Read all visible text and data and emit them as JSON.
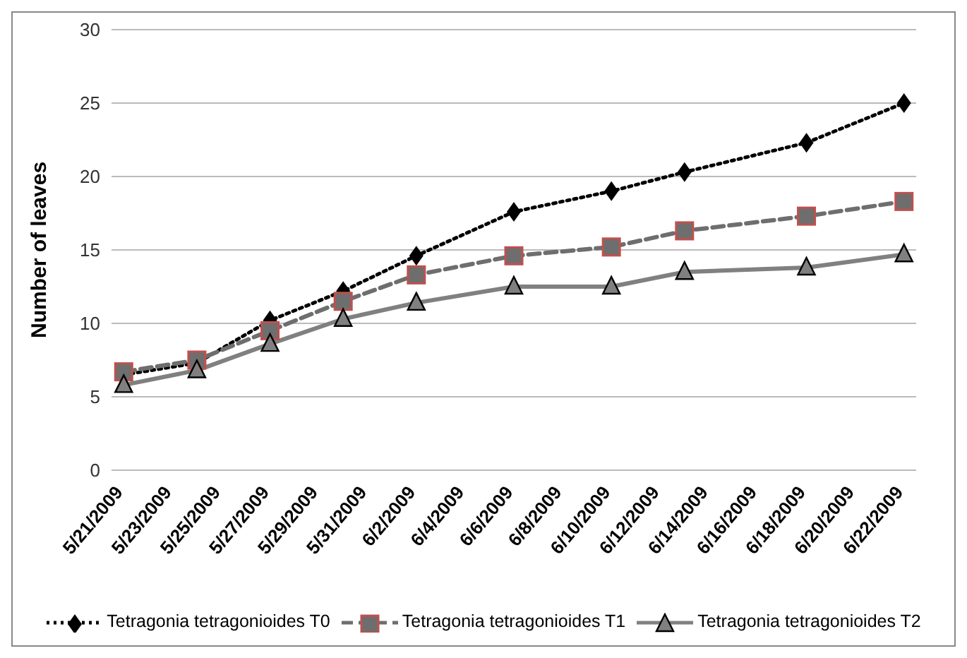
{
  "chart_data": {
    "type": "line",
    "ylabel": "Number of leaves",
    "x": [
      "2009-05-21",
      "2009-05-24",
      "2009-05-27",
      "2009-05-30",
      "2009-06-02",
      "2009-06-06",
      "2009-06-10",
      "2009-06-13",
      "2009-06-18",
      "2009-06-22"
    ],
    "series": [
      {
        "name": "Tetragonia tetragonioides T0",
        "color": "#000000",
        "marker": "diamond",
        "line_style": "dotted",
        "values": [
          6.5,
          7.3,
          10.2,
          12.2,
          14.6,
          17.6,
          19.0,
          20.3,
          22.3,
          25.0
        ]
      },
      {
        "name": "Tetragonia tetragonioides T1",
        "color": "#6e6e6e",
        "marker": "square",
        "line_style": "dashed",
        "values": [
          6.7,
          7.5,
          9.5,
          11.5,
          13.3,
          14.6,
          15.2,
          16.3,
          17.3,
          18.3
        ]
      },
      {
        "name": "Tetragonia tetragonioides T2",
        "color": "#808080",
        "marker": "triangle",
        "line_style": "solid",
        "values": [
          5.8,
          6.8,
          8.6,
          10.3,
          11.4,
          12.5,
          12.5,
          13.5,
          13.8,
          14.7
        ]
      }
    ],
    "xlim": [
      "2009-05-20T12:00",
      "2009-06-22T12:00"
    ],
    "xticks": [
      {
        "value": "2009-05-21",
        "label": "5/21/2009"
      },
      {
        "value": "2009-05-23",
        "label": "5/23/2009"
      },
      {
        "value": "2009-05-25",
        "label": "5/25/2009"
      },
      {
        "value": "2009-05-27",
        "label": "5/27/2009"
      },
      {
        "value": "2009-05-29",
        "label": "5/29/2009"
      },
      {
        "value": "2009-05-31",
        "label": "5/31/2009"
      },
      {
        "value": "2009-06-02",
        "label": "6/2/2009"
      },
      {
        "value": "2009-06-04",
        "label": "6/4/2009"
      },
      {
        "value": "2009-06-06",
        "label": "6/6/2009"
      },
      {
        "value": "2009-06-08",
        "label": "6/8/2009"
      },
      {
        "value": "2009-06-10",
        "label": "6/10/2009"
      },
      {
        "value": "2009-06-12",
        "label": "6/12/2009"
      },
      {
        "value": "2009-06-14",
        "label": "6/14/2009"
      },
      {
        "value": "2009-06-16",
        "label": "6/16/2009"
      },
      {
        "value": "2009-06-18",
        "label": "6/18/2009"
      },
      {
        "value": "2009-06-20",
        "label": "6/20/2009"
      },
      {
        "value": "2009-06-22",
        "label": "6/22/2009"
      }
    ],
    "ylim": [
      0,
      30
    ],
    "yticks": [
      0,
      5,
      10,
      15,
      20,
      25,
      30
    ],
    "grid": "y",
    "legend": "bottom"
  }
}
